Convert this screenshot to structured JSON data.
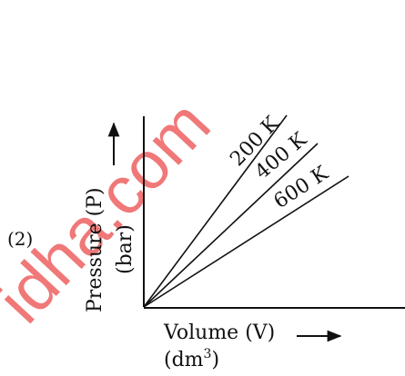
{
  "option_label": "(2)",
  "watermark": "idha.com",
  "y_axis": {
    "title": "Pressure (P)",
    "unit": "(bar)"
  },
  "x_axis": {
    "title": "Volume (V)",
    "unit_base": "(dm",
    "unit_exp": "3",
    "unit_close": ")"
  },
  "isotherms": [
    {
      "label": "200 K"
    },
    {
      "label": "400 K"
    },
    {
      "label": "600 K"
    }
  ],
  "colors": {
    "ink": "#111111",
    "watermark": "#f07878"
  }
}
